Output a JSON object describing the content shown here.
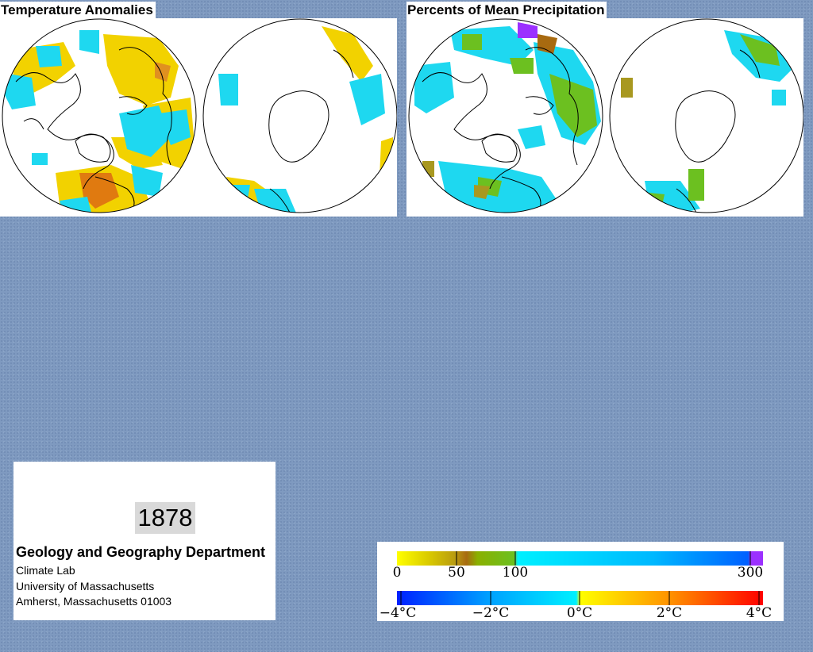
{
  "temperature": {
    "title": "Temperature Anomalies"
  },
  "precipitation": {
    "title": "Percents of Mean Precipitation"
  },
  "info": {
    "year": "1878",
    "department": "Geology and Geography Department",
    "lab": "Climate Lab",
    "university": "University of Massachusetts",
    "address": "Amherst, Massachusetts 01003"
  },
  "legend": {
    "precipitation": {
      "ticks": [
        "0",
        "50",
        "100",
        "300"
      ],
      "colors": [
        "#ffff00",
        "#c8b400",
        "#a86a10",
        "#7ab800",
        "#2fd08a",
        "#00e6ff",
        "#0078ff",
        "#9b30ff"
      ]
    },
    "temperature": {
      "ticks": [
        "−4°C",
        "−2°C",
        "0°C",
        "2°C",
        "4°C"
      ],
      "colors": [
        "#0020ff",
        "#00c8ff",
        "#00f0ff",
        "#ffff00",
        "#ff9000",
        "#ff0000"
      ]
    }
  },
  "colors": {
    "background": "#7f9ac0",
    "anomaly_warm": "#f2d200",
    "anomaly_hot": "#e07a10",
    "anomaly_cool": "#1ed8f0",
    "precip_dry": "#a89820",
    "precip_wet": "#6cc020",
    "precip_very_wet": "#9b30ff"
  }
}
